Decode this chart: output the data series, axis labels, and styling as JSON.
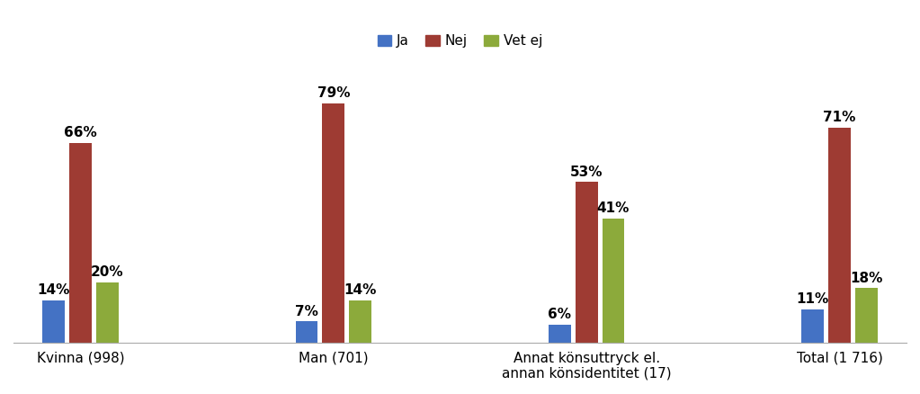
{
  "categories": [
    "Kvinna (998)",
    "Man (701)",
    "Annat könsuttryck el.\nannan könsidentitet (17)",
    "Total (1 716)"
  ],
  "series": {
    "Ja": [
      14,
      7,
      6,
      11
    ],
    "Nej": [
      66,
      79,
      53,
      71
    ],
    "Vet ej": [
      20,
      14,
      41,
      18
    ]
  },
  "colors": {
    "Ja": "#4472C4",
    "Nej": "#9E3B33",
    "Vet ej": "#8CAA3B"
  },
  "bar_width": 0.15,
  "ylim": [
    0,
    92
  ],
  "legend_labels": [
    "Ja",
    "Nej",
    "Vet ej"
  ],
  "label_fontsize": 11,
  "tick_fontsize": 11,
  "legend_fontsize": 11,
  "background_color": "#FFFFFF"
}
